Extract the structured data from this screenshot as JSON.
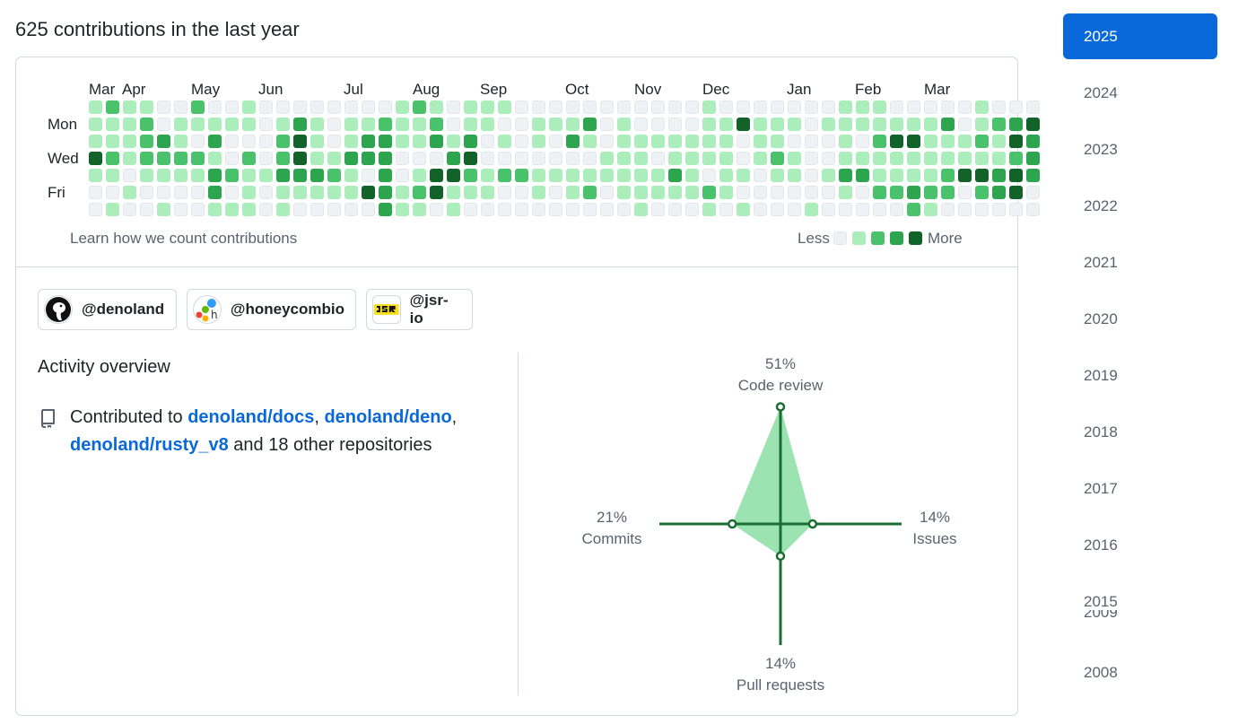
{
  "heading": "625 contributions in the last year",
  "calendar": {
    "months": [
      "Mar",
      "Apr",
      "May",
      "Jun",
      "Jul",
      "Aug",
      "Sep",
      "Oct",
      "Nov",
      "Dec",
      "Jan",
      "Feb",
      "Mar"
    ],
    "day_labels": [
      "Mon",
      "Wed",
      "Fri"
    ],
    "learn_link": "Learn how we count contributions",
    "legend_less": "Less",
    "legend_more": "More",
    "level_colors": [
      "#eff2f5",
      "#aceebb",
      "#4ac26b",
      "#2da44e",
      "#116329"
    ],
    "weeks": [
      [
        1,
        1,
        1,
        4,
        1,
        0,
        0
      ],
      [
        2,
        1,
        1,
        2,
        1,
        0,
        1
      ],
      [
        1,
        1,
        1,
        1,
        0,
        1,
        0
      ],
      [
        1,
        2,
        2,
        2,
        1,
        0,
        0
      ],
      [
        0,
        0,
        3,
        2,
        1,
        0,
        1
      ],
      [
        0,
        1,
        1,
        2,
        1,
        0,
        0
      ],
      [
        2,
        1,
        0,
        2,
        1,
        0,
        0
      ],
      [
        0,
        1,
        3,
        1,
        3,
        3,
        1
      ],
      [
        0,
        1,
        0,
        0,
        2,
        0,
        1
      ],
      [
        1,
        1,
        0,
        2,
        1,
        1,
        1
      ],
      [
        0,
        0,
        0,
        0,
        1,
        0,
        0
      ],
      [
        0,
        1,
        2,
        2,
        3,
        1,
        1
      ],
      [
        0,
        3,
        4,
        4,
        3,
        1,
        0
      ],
      [
        0,
        1,
        1,
        1,
        3,
        1,
        0
      ],
      [
        0,
        0,
        0,
        1,
        2,
        1,
        0
      ],
      [
        0,
        1,
        1,
        3,
        1,
        1,
        0
      ],
      [
        0,
        1,
        3,
        3,
        0,
        4,
        0
      ],
      [
        0,
        2,
        3,
        3,
        3,
        3,
        3
      ],
      [
        1,
        1,
        1,
        0,
        0,
        1,
        1
      ],
      [
        2,
        1,
        1,
        0,
        1,
        2,
        1
      ],
      [
        1,
        2,
        3,
        0,
        4,
        4,
        0
      ],
      [
        0,
        0,
        1,
        3,
        4,
        1,
        1
      ],
      [
        1,
        1,
        3,
        4,
        2,
        1,
        0
      ],
      [
        1,
        1,
        0,
        0,
        1,
        1,
        0
      ],
      [
        1,
        0,
        1,
        0,
        2,
        0,
        0
      ],
      [
        0,
        0,
        0,
        0,
        2,
        0,
        0
      ],
      [
        0,
        1,
        1,
        0,
        1,
        1,
        0
      ],
      [
        0,
        1,
        0,
        0,
        1,
        0,
        0
      ],
      [
        0,
        1,
        3,
        0,
        1,
        1,
        0
      ],
      [
        0,
        3,
        1,
        0,
        1,
        2,
        0
      ],
      [
        0,
        0,
        0,
        1,
        1,
        0,
        0
      ],
      [
        0,
        1,
        1,
        1,
        1,
        1,
        0
      ],
      [
        0,
        0,
        1,
        1,
        1,
        1,
        1
      ],
      [
        0,
        0,
        1,
        0,
        1,
        1,
        0
      ],
      [
        0,
        0,
        1,
        1,
        3,
        1,
        0
      ],
      [
        0,
        0,
        1,
        1,
        1,
        1,
        0
      ],
      [
        1,
        1,
        1,
        1,
        0,
        2,
        1
      ],
      [
        0,
        1,
        1,
        1,
        1,
        1,
        0
      ],
      [
        0,
        4,
        0,
        0,
        1,
        0,
        1
      ],
      [
        0,
        1,
        1,
        1,
        0,
        0,
        0
      ],
      [
        0,
        1,
        1,
        2,
        1,
        0,
        0
      ],
      [
        0,
        1,
        0,
        1,
        1,
        0,
        0
      ],
      [
        0,
        0,
        0,
        0,
        0,
        0,
        1
      ],
      [
        0,
        1,
        0,
        0,
        1,
        0,
        0
      ],
      [
        1,
        1,
        1,
        1,
        3,
        1,
        0
      ],
      [
        1,
        1,
        0,
        1,
        3,
        0,
        0
      ],
      [
        1,
        1,
        2,
        1,
        1,
        2,
        0
      ],
      [
        0,
        1,
        4,
        1,
        1,
        2,
        0
      ],
      [
        0,
        1,
        4,
        1,
        1,
        3,
        2
      ],
      [
        0,
        1,
        1,
        1,
        1,
        2,
        1
      ],
      [
        0,
        3,
        1,
        1,
        2,
        2,
        0
      ],
      [
        0,
        0,
        1,
        1,
        4,
        0,
        0
      ],
      [
        1,
        1,
        2,
        1,
        4,
        2,
        0
      ],
      [
        0,
        2,
        1,
        1,
        3,
        3,
        0
      ],
      [
        0,
        3,
        4,
        2,
        4,
        4,
        0
      ],
      [
        0,
        4,
        3,
        3,
        3,
        0,
        0
      ]
    ]
  },
  "orgs": [
    {
      "name": "@denoland"
    },
    {
      "name": "@honeycombio"
    },
    {
      "name": "@jsr-io"
    }
  ],
  "activity": {
    "title": "Activity overview",
    "prefix": "Contributed to ",
    "repos": [
      "denoland/docs",
      "denoland/deno",
      "denoland/rusty_v8"
    ],
    "sep1": ", ",
    "sep2": ",",
    "suffix": " and 18 other repositories"
  },
  "radar": {
    "axes": [
      {
        "label": "Code review",
        "value": 51,
        "pct": "51%"
      },
      {
        "label": "Issues",
        "value": 14,
        "pct": "14%"
      },
      {
        "label": "Pull requests",
        "value": 14,
        "pct": "14%"
      },
      {
        "label": "Commits",
        "value": 21,
        "pct": "21%"
      }
    ],
    "fill_color": "#9be3b0",
    "line_color": "#1a6e33"
  },
  "years": [
    "2025",
    "2024",
    "2023",
    "2022",
    "2021",
    "2020",
    "2019",
    "2018",
    "2017",
    "2016",
    "2015",
    "2008"
  ],
  "selected_year": "2025",
  "overlapped_year_fragment": "2009"
}
